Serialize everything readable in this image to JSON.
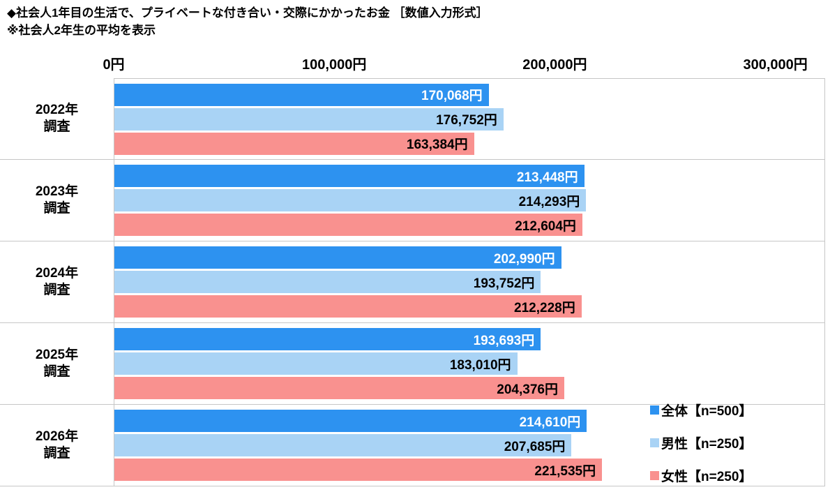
{
  "title": "◆社会人1年目の生活で、プライベートな付き合い・交際にかかったお金 ［数値入力形式］",
  "subtitle": "※社会人2年生の平均を表示",
  "chart_data": {
    "type": "bar",
    "orientation": "horizontal",
    "title": "社会人1年目の生活で、プライベートな付き合い・交際にかかったお金（数値入力形式）",
    "subtitle": "社会人2年生の平均を表示",
    "x_axis": {
      "tick_labels": [
        "0円",
        "100,000円",
        "200,000円",
        "300,000円"
      ],
      "tick_values": [
        0,
        100000,
        200000,
        300000
      ],
      "max": 300000
    },
    "categories": [
      "2022年\n調査",
      "2023年\n調査",
      "2024年\n調査",
      "2025年\n調査",
      "2026年\n調査"
    ],
    "series": [
      {
        "name": "全体【n=500】",
        "color": "#2d92f0",
        "label_color": "#ffffff",
        "values": [
          170068,
          213448,
          202990,
          193693,
          214610
        ]
      },
      {
        "name": "男性【n=250】",
        "color": "#a9d3f5",
        "label_color": "#000000",
        "values": [
          176752,
          214293,
          193752,
          183010,
          207685
        ]
      },
      {
        "name": "女性【n=250】",
        "color": "#f9918f",
        "label_color": "#000000",
        "values": [
          163384,
          212604,
          212228,
          204376,
          221535
        ]
      }
    ],
    "value_suffix": "円",
    "grid": "horizontal-separators",
    "legend_position": "bottom-right"
  }
}
